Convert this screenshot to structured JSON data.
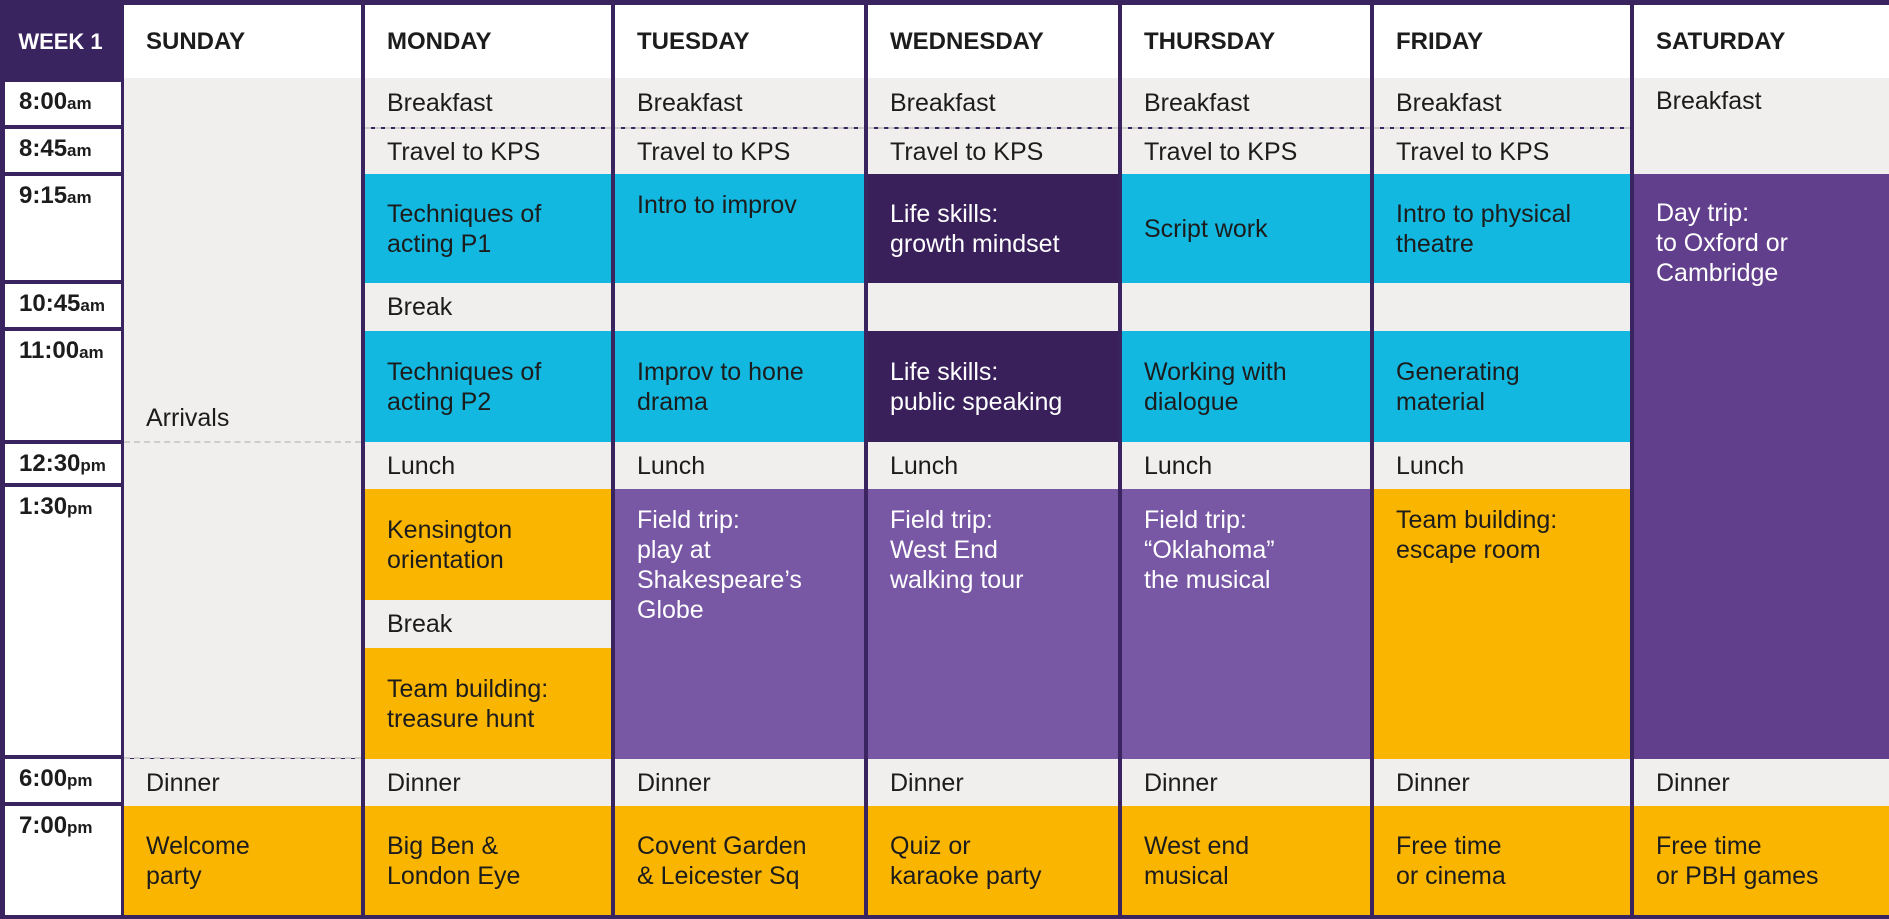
{
  "header": {
    "week": "WEEK 1",
    "days": [
      "SUNDAY",
      "MONDAY",
      "TUESDAY",
      "WEDNESDAY",
      "THURSDAY",
      "FRIDAY",
      "SATURDAY"
    ]
  },
  "times": [
    {
      "t": "8:00",
      "ap": "am"
    },
    {
      "t": "8:45",
      "ap": "am"
    },
    {
      "t": "9:15",
      "ap": "am"
    },
    {
      "t": "10:45",
      "ap": "am"
    },
    {
      "t": "11:00",
      "ap": "am"
    },
    {
      "t": "12:30",
      "ap": "pm"
    },
    {
      "t": "1:30",
      "ap": "pm"
    },
    {
      "t": "6:00",
      "ap": "pm"
    },
    {
      "t": "7:00",
      "ap": "pm"
    }
  ],
  "sunday": {
    "arrivals": "Arrivals",
    "dinner": "Dinner",
    "evening": "Welcome\nparty"
  },
  "monday": {
    "breakfast": "Breakfast",
    "travel": "Travel to KPS",
    "morning1": "Techniques of\nacting P1",
    "break": "Break",
    "morning2": "Techniques of\nacting P2",
    "lunch": "Lunch",
    "afternoon1": "Kensington\norientation",
    "break2": "Break",
    "afternoon2": "Team building:\ntreasure hunt",
    "dinner": "Dinner",
    "evening": "Big Ben &\nLondon Eye"
  },
  "tuesday": {
    "breakfast": "Breakfast",
    "travel": "Travel to KPS",
    "morning1": "Intro to improv",
    "morning2": "Improv to hone\ndrama",
    "lunch": "Lunch",
    "afternoon": "Field trip:\nplay at\nShakespeare’s\nGlobe",
    "dinner": "Dinner",
    "evening": "Covent Garden\n& Leicester Sq"
  },
  "wednesday": {
    "breakfast": "Breakfast",
    "travel": "Travel to KPS",
    "morning1": "Life skills:\ngrowth mindset",
    "morning2": "Life skills:\npublic speaking",
    "lunch": "Lunch",
    "afternoon": "Field trip:\nWest End\nwalking tour",
    "dinner": "Dinner",
    "evening": "Quiz or\nkaraoke party"
  },
  "thursday": {
    "breakfast": "Breakfast",
    "travel": "Travel to KPS",
    "morning1": "Script work",
    "morning2": "Working with\ndialogue",
    "lunch": "Lunch",
    "afternoon": "Field trip:\n“Oklahoma”\nthe musical",
    "dinner": "Dinner",
    "evening": "West end\nmusical"
  },
  "friday": {
    "breakfast": "Breakfast",
    "travel": "Travel to KPS",
    "morning1": "Intro to physical\ntheatre",
    "morning2": "Generating\nmaterial",
    "lunch": "Lunch",
    "afternoon": "Team building:\nescape room",
    "dinner": "Dinner",
    "evening": "Free time\nor cinema"
  },
  "saturday": {
    "breakfast": "Breakfast",
    "daytrip": "Day trip:\nto Oxford or\nCambridge",
    "dinner": "Dinner",
    "evening": "Free time\nor PBH games"
  },
  "colors": {
    "frame": "#3a2460",
    "grey": "#f0efed",
    "cyan": "#12b8df",
    "dark_purple": "#39205b",
    "purple": "#7858a5",
    "saturday_purple": "#613f8c",
    "yellow": "#f9b500"
  }
}
